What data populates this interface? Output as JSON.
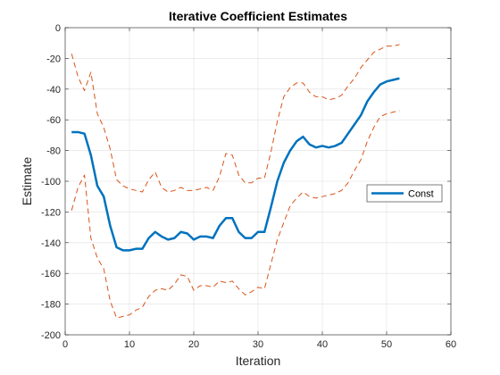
{
  "chart_data": {
    "type": "line",
    "title": "Iterative  Coefficient  Estimates",
    "xlabel": "Iteration",
    "ylabel": "Estimate",
    "xlim": [
      0,
      60
    ],
    "ylim": [
      -200,
      0
    ],
    "xticks": [
      0,
      10,
      20,
      30,
      40,
      50,
      60
    ],
    "yticks": [
      0,
      -20,
      -40,
      -60,
      -80,
      -100,
      -120,
      -140,
      -160,
      -180,
      -200
    ],
    "grid": true,
    "legend": {
      "position": "right",
      "entries": [
        "Const"
      ]
    },
    "colors": {
      "estimate": "#0072BD",
      "bounds": "#D95319",
      "grid": "#DFDFDF",
      "axis": "#262626"
    },
    "x": [
      1,
      2,
      3,
      4,
      5,
      6,
      7,
      8,
      9,
      10,
      11,
      12,
      13,
      14,
      15,
      16,
      17,
      18,
      19,
      20,
      21,
      22,
      23,
      24,
      25,
      26,
      27,
      28,
      29,
      30,
      31,
      32,
      33,
      34,
      35,
      36,
      37,
      38,
      39,
      40,
      41,
      42,
      43,
      44,
      45,
      46,
      47,
      48,
      49,
      50,
      51,
      52
    ],
    "series": [
      {
        "name": "Const",
        "style": "solid",
        "values": [
          -68,
          -68,
          -69,
          -83,
          -103,
          -110,
          -129,
          -143,
          -145,
          -145,
          -144,
          -144,
          -137,
          -133,
          -136,
          -138,
          -137,
          -133,
          -134,
          -138,
          -136,
          -136,
          -137,
          -129,
          -124,
          -124,
          -133,
          -137,
          -137,
          -133,
          -133,
          -117,
          -100,
          -88,
          -80,
          -74,
          -71,
          -76,
          -78,
          -77,
          -78,
          -77,
          -75,
          -69,
          -63,
          -57,
          -48,
          -42,
          -37,
          -35,
          -34,
          -33
        ]
      },
      {
        "style": "dashed",
        "values": [
          -17,
          -32,
          -41,
          -29,
          -56,
          -65,
          -79,
          -99,
          -103,
          -105,
          -106,
          -107,
          -99,
          -94,
          -104,
          -107,
          -106,
          -104,
          -106,
          -106,
          -105,
          -104,
          -106,
          -97,
          -82,
          -83,
          -96,
          -101,
          -101,
          -98,
          -98,
          -81,
          -61,
          -45,
          -39,
          -36,
          -36,
          -42,
          -45,
          -45,
          -47,
          -46,
          -44,
          -38,
          -33,
          -26,
          -21,
          -16,
          -14,
          -12,
          -12,
          -11
        ]
      },
      {
        "style": "dashed",
        "values": [
          -119,
          -104,
          -96,
          -137,
          -150,
          -157,
          -178,
          -189,
          -188,
          -187,
          -184,
          -182,
          -175,
          -171,
          -170,
          -171,
          -167,
          -161,
          -162,
          -171,
          -168,
          -168,
          -169,
          -165,
          -166,
          -165,
          -170,
          -174,
          -172,
          -169,
          -170,
          -154,
          -138,
          -127,
          -116,
          -111,
          -107,
          -110,
          -111,
          -110,
          -109,
          -108,
          -106,
          -101,
          -93,
          -86,
          -74,
          -65,
          -58,
          -56,
          -55,
          -54
        ]
      }
    ]
  }
}
